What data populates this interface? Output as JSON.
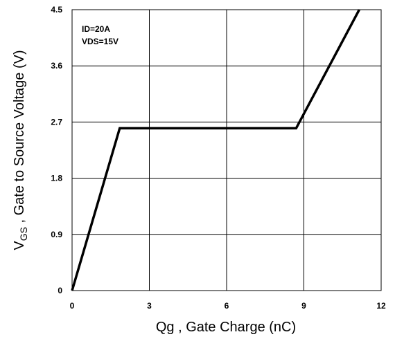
{
  "chart_data": {
    "type": "line",
    "xlabel": "Qg , Gate Charge (nC)",
    "ylabel": {
      "prefix": "V",
      "subscript": "GS",
      "rest": " , Gate to Source Voltage (V)"
    },
    "xlim": [
      0,
      12
    ],
    "ylim": [
      0,
      4.5
    ],
    "x_ticks": [
      "0",
      "3",
      "6",
      "9",
      "12"
    ],
    "y_ticks": [
      "0",
      "0.9",
      "1.8",
      "2.7",
      "3.6",
      "4.5"
    ],
    "grid": true,
    "annotations": [
      "ID=20A",
      "VDS=15V"
    ],
    "series": [
      {
        "x": [
          0,
          1.85,
          8.7,
          11.15
        ],
        "y": [
          0,
          2.6,
          2.6,
          4.5
        ]
      }
    ]
  }
}
